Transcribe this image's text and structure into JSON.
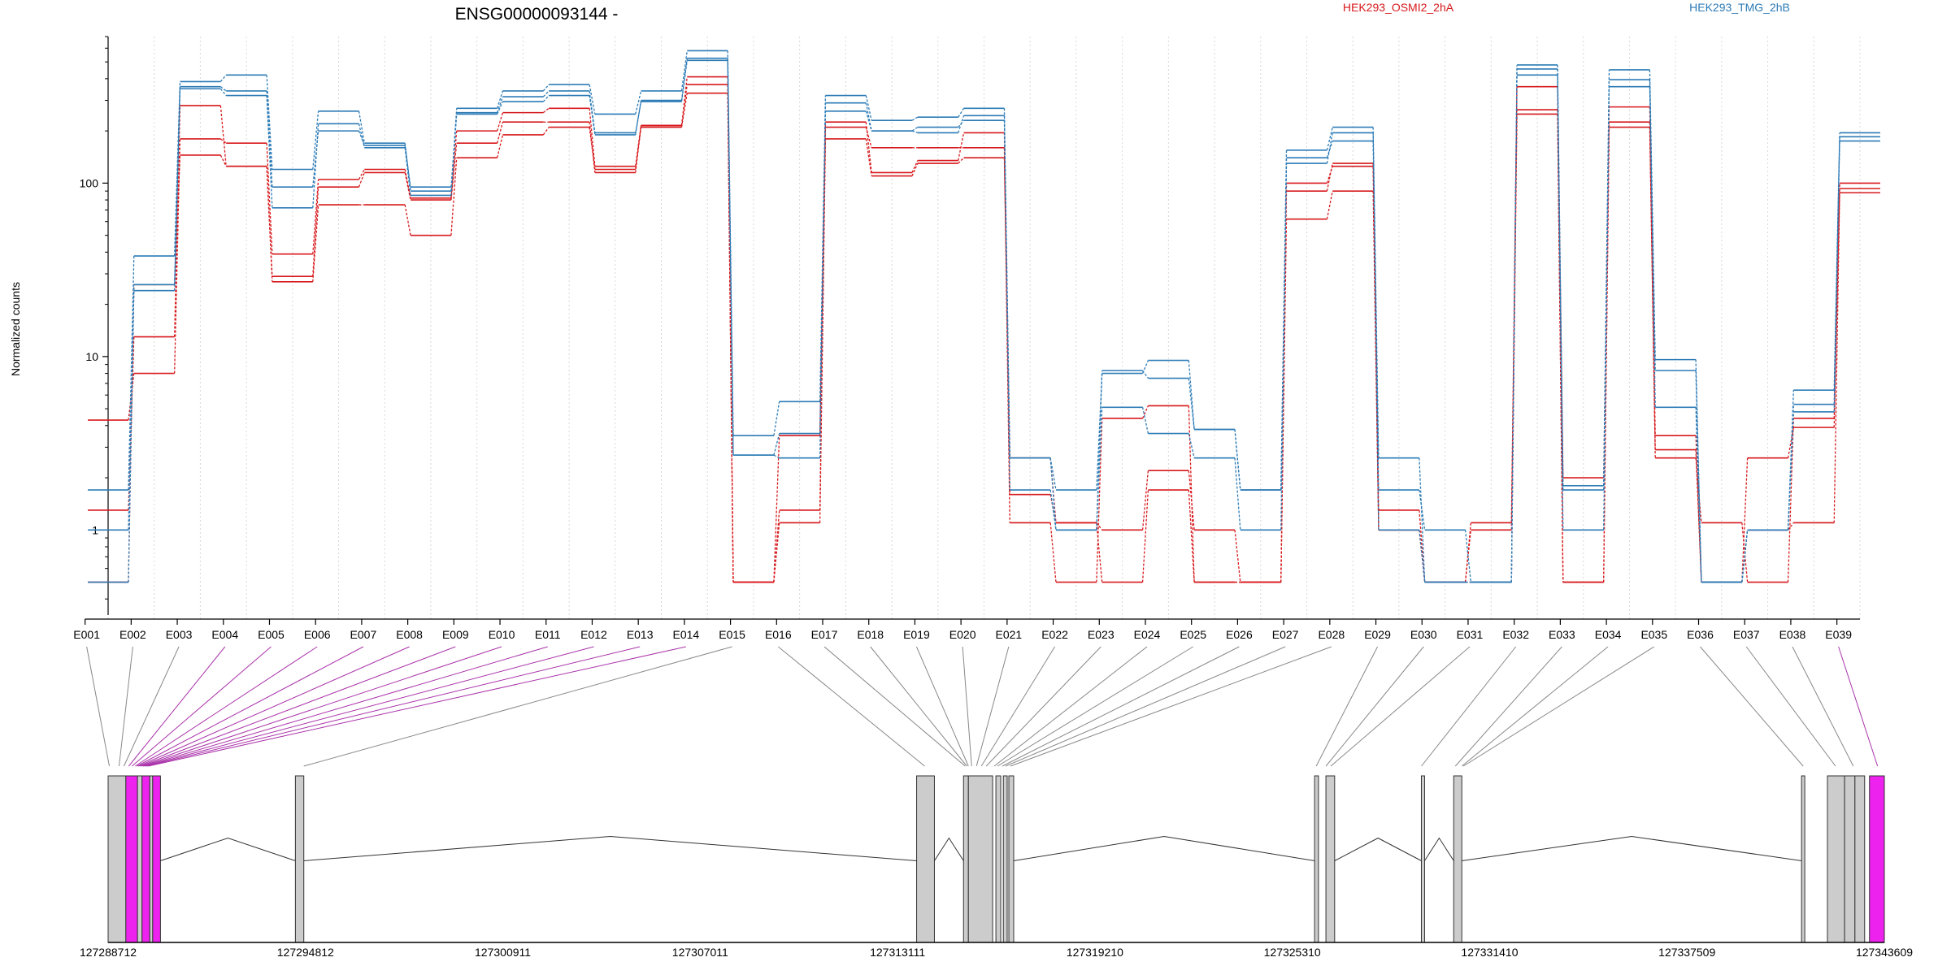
{
  "chart_data": {
    "type": "line",
    "title": "ENSG00000093144 -",
    "ylabel": "Normalized counts",
    "y_scale": "log",
    "ylim": [
      0.38,
      700
    ],
    "y_ticks": [
      {
        "value": 1,
        "label": "1"
      },
      {
        "value": 10,
        "label": "10"
      },
      {
        "value": 100,
        "label": "100"
      }
    ],
    "categories": [
      "E001",
      "E002",
      "E003",
      "E004",
      "E005",
      "E006",
      "E007",
      "E008",
      "E009",
      "E010",
      "E011",
      "E012",
      "E013",
      "E014",
      "E015",
      "E016",
      "E017",
      "E018",
      "E019",
      "E020",
      "E021",
      "E022",
      "E023",
      "E024",
      "E025",
      "E026",
      "E027",
      "E028",
      "E029",
      "E030",
      "E031",
      "E032",
      "E033",
      "E034",
      "E035",
      "E036",
      "E037",
      "E038",
      "E039"
    ],
    "grid": true,
    "legend": [
      "HEK293_OSMI2_2hA",
      "HEK293_TMG_2hB"
    ],
    "series": [
      {
        "name": "HEK293_OSMI2_2hA",
        "color": "#d7191c",
        "values": [
          4.3,
          8,
          180,
          170,
          39,
          105,
          120,
          82,
          200,
          255,
          270,
          125,
          215,
          370,
          0.5,
          1.3,
          210,
          160,
          160,
          160,
          1.1,
          0.5,
          4.4,
          5.2,
          0.5,
          0.5,
          100,
          125,
          1.3,
          0.5,
          1.1,
          360,
          2,
          275,
          3.5,
          0.5,
          2.6,
          3.9,
          93
        ]
      },
      {
        "name": "HEK293_OSMI2_2hA",
        "color": "#d7191c",
        "values": [
          1.3,
          13,
          280,
          125,
          29,
          95,
          115,
          80,
          170,
          225,
          225,
          115,
          215,
          410,
          0.5,
          3.5,
          225,
          115,
          135,
          195,
          1.6,
          1.1,
          0.5,
          1.7,
          0.5,
          0.5,
          90,
          130,
          1.0,
          0.5,
          1.0,
          265,
          0.5,
          225,
          2.6,
          1.1,
          0.5,
          4.4,
          100
        ]
      },
      {
        "name": "HEK293_OSMI2_2hA",
        "color": "#d7191c",
        "values": [
          0.5,
          26,
          145,
          125,
          27,
          75,
          75,
          50,
          140,
          190,
          210,
          120,
          210,
          330,
          0.5,
          1.1,
          180,
          110,
          130,
          140,
          2.6,
          1.1,
          1.0,
          2.2,
          1.0,
          0.5,
          62,
          90,
          1.0,
          0.5,
          0.5,
          250,
          0.5,
          210,
          2.9,
          0.5,
          1.0,
          1.1,
          88
        ]
      },
      {
        "name": "HEK293_TMG_2hB",
        "color": "#2c7bb6",
        "values": [
          1.7,
          38,
          385,
          420,
          120,
          260,
          170,
          90,
          270,
          340,
          370,
          250,
          340,
          580,
          3.5,
          5.5,
          320,
          230,
          240,
          270,
          2.6,
          1.7,
          8.0,
          9.5,
          3.8,
          1.7,
          155,
          210,
          2.6,
          0.5,
          0.5,
          480,
          1.8,
          450,
          9.6,
          0.5,
          1.0,
          6.4,
          195
        ]
      },
      {
        "name": "HEK293_TMG_2hB",
        "color": "#2c7bb6",
        "values": [
          1.0,
          24,
          360,
          340,
          95,
          200,
          165,
          95,
          255,
          315,
          340,
          195,
          295,
          510,
          2.7,
          2.6,
          290,
          200,
          210,
          230,
          2.6,
          1.0,
          8.3,
          7.5,
          3.8,
          1.7,
          140,
          175,
          1.7,
          1.0,
          0.5,
          455,
          1.7,
          395,
          5.1,
          0.5,
          1.0,
          5.3,
          175
        ]
      },
      {
        "name": "HEK293_TMG_2hB",
        "color": "#2c7bb6",
        "values": [
          0.5,
          26,
          350,
          320,
          72,
          220,
          160,
          85,
          250,
          295,
          320,
          190,
          300,
          525,
          2.7,
          3.6,
          260,
          200,
          195,
          245,
          1.7,
          1.0,
          5.1,
          3.6,
          2.6,
          1.0,
          130,
          195,
          1.0,
          0.5,
          0.5,
          420,
          1.0,
          360,
          8.3,
          0.5,
          1.0,
          4.8,
          185
        ]
      }
    ],
    "gene_model": {
      "coordinate_ticks": [
        "127288712",
        "127294812",
        "127300911",
        "127307011",
        "127313111",
        "127319210",
        "127325310",
        "127331410",
        "127337509",
        "127343609"
      ],
      "coord_min": 127288712,
      "coord_max": 127343609,
      "exons": [
        {
          "start": 127288712,
          "end": 127289260,
          "color": "#cccccc"
        },
        {
          "start": 127289260,
          "end": 127289620,
          "color": "#ee22ee"
        },
        {
          "start": 127289620,
          "end": 127289760,
          "color": "#cccccc"
        },
        {
          "start": 127289760,
          "end": 127290000,
          "color": "#ee22ee"
        },
        {
          "start": 127290000,
          "end": 127290090,
          "color": "#cccccc"
        },
        {
          "start": 127290090,
          "end": 127290330,
          "color": "#ee22ee"
        },
        {
          "start": 127294500,
          "end": 127294760,
          "color": "#cccccc"
        },
        {
          "start": 127313700,
          "end": 127314250,
          "color": "#cccccc"
        },
        {
          "start": 127315150,
          "end": 127315300,
          "color": "#cccccc"
        },
        {
          "start": 127315300,
          "end": 127316050,
          "color": "#cccccc"
        },
        {
          "start": 127316150,
          "end": 127316300,
          "color": "#cccccc"
        },
        {
          "start": 127316380,
          "end": 127316500,
          "color": "#cccccc"
        },
        {
          "start": 127316550,
          "end": 127316700,
          "color": "#cccccc"
        },
        {
          "start": 127326000,
          "end": 127326120,
          "color": "#cccccc"
        },
        {
          "start": 127326350,
          "end": 127326620,
          "color": "#cccccc"
        },
        {
          "start": 127329300,
          "end": 127329400,
          "color": "#cccccc"
        },
        {
          "start": 127330300,
          "end": 127330550,
          "color": "#cccccc"
        },
        {
          "start": 127341050,
          "end": 127341150,
          "color": "#cccccc"
        },
        {
          "start": 127341850,
          "end": 127342380,
          "color": "#cccccc"
        },
        {
          "start": 127342380,
          "end": 127342700,
          "color": "#cccccc"
        },
        {
          "start": 127342700,
          "end": 127343000,
          "color": "#cccccc"
        },
        {
          "start": 127343150,
          "end": 127343609,
          "color": "#ee22ee"
        }
      ],
      "introns": [
        [
          127290330,
          127294500
        ],
        [
          127294760,
          127313700
        ],
        [
          127314250,
          127315150
        ],
        [
          127316700,
          127326000
        ],
        [
          127326620,
          127329300
        ],
        [
          127329400,
          127330300
        ],
        [
          127330550,
          127341050
        ]
      ],
      "exon_links": [
        {
          "exon": "E001",
          "pos": 127288750,
          "color": "#888888"
        },
        {
          "exon": "E002",
          "pos": 127289050,
          "color": "#888888"
        },
        {
          "exon": "E003",
          "pos": 127289200,
          "color": "#888888"
        },
        {
          "exon": "E004",
          "pos": 127289350,
          "color": "#aa33aa"
        },
        {
          "exon": "E005",
          "pos": 127289450,
          "color": "#aa33aa"
        },
        {
          "exon": "E006",
          "pos": 127289550,
          "color": "#aa33aa"
        },
        {
          "exon": "E007",
          "pos": 127289600,
          "color": "#aa33aa"
        },
        {
          "exon": "E008",
          "pos": 127289650,
          "color": "#aa33aa"
        },
        {
          "exon": "E009",
          "pos": 127289700,
          "color": "#aa33aa"
        },
        {
          "exon": "E010",
          "pos": 127289750,
          "color": "#aa33aa"
        },
        {
          "exon": "E011",
          "pos": 127289800,
          "color": "#aa33aa"
        },
        {
          "exon": "E012",
          "pos": 127289850,
          "color": "#aa33aa"
        },
        {
          "exon": "E013",
          "pos": 127289900,
          "color": "#aa33aa"
        },
        {
          "exon": "E014",
          "pos": 127289950,
          "color": "#aa33aa"
        },
        {
          "exon": "E015",
          "pos": 127294760,
          "color": "#888888"
        },
        {
          "exon": "E016",
          "pos": 127313950,
          "color": "#888888"
        },
        {
          "exon": "E017",
          "pos": 127315200,
          "color": "#888888"
        },
        {
          "exon": "E018",
          "pos": 127315250,
          "color": "#888888"
        },
        {
          "exon": "E019",
          "pos": 127315300,
          "color": "#888888"
        },
        {
          "exon": "E020",
          "pos": 127315400,
          "color": "#888888"
        },
        {
          "exon": "E021",
          "pos": 127315550,
          "color": "#888888"
        },
        {
          "exon": "E022",
          "pos": 127315700,
          "color": "#888888"
        },
        {
          "exon": "E023",
          "pos": 127315850,
          "color": "#888888"
        },
        {
          "exon": "E024",
          "pos": 127316100,
          "color": "#888888"
        },
        {
          "exon": "E025",
          "pos": 127316200,
          "color": "#888888"
        },
        {
          "exon": "E026",
          "pos": 127316350,
          "color": "#888888"
        },
        {
          "exon": "E027",
          "pos": 127316450,
          "color": "#888888"
        },
        {
          "exon": "E028",
          "pos": 127316600,
          "color": "#888888"
        },
        {
          "exon": "E029",
          "pos": 127326050,
          "color": "#888888"
        },
        {
          "exon": "E030",
          "pos": 127326350,
          "color": "#888888"
        },
        {
          "exon": "E031",
          "pos": 127326500,
          "color": "#888888"
        },
        {
          "exon": "E032",
          "pos": 127329300,
          "color": "#888888"
        },
        {
          "exon": "E033",
          "pos": 127330350,
          "color": "#888888"
        },
        {
          "exon": "E034",
          "pos": 127330550,
          "color": "#888888"
        },
        {
          "exon": "E035",
          "pos": 127330600,
          "color": "#888888"
        },
        {
          "exon": "E036",
          "pos": 127341100,
          "color": "#888888"
        },
        {
          "exon": "E037",
          "pos": 127342100,
          "color": "#888888"
        },
        {
          "exon": "E038",
          "pos": 127342650,
          "color": "#888888"
        },
        {
          "exon": "E039",
          "pos": 127343400,
          "color": "#aa33aa"
        }
      ]
    }
  }
}
